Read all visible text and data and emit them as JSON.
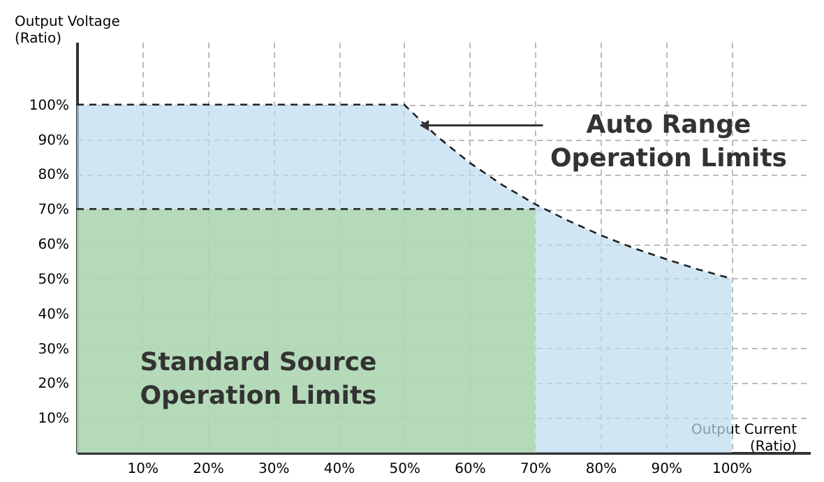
{
  "chart_data": {
    "type": "area",
    "xlabel": "Output Current\n(Ratio)",
    "ylabel": "Output Voltage\n(Ratio)",
    "xlim": [
      0,
      112
    ],
    "ylim": [
      0,
      118
    ],
    "xticks": [
      {
        "value": 10,
        "label": "10%"
      },
      {
        "value": 20,
        "label": "20%"
      },
      {
        "value": 30,
        "label": "30%"
      },
      {
        "value": 40,
        "label": "40%"
      },
      {
        "value": 50,
        "label": "50%"
      },
      {
        "value": 60,
        "label": "60%"
      },
      {
        "value": 70,
        "label": "70%"
      },
      {
        "value": 80,
        "label": "80%"
      },
      {
        "value": 90,
        "label": "90%"
      },
      {
        "value": 100,
        "label": "100%"
      }
    ],
    "yticks": [
      {
        "value": 10,
        "label": "10%"
      },
      {
        "value": 20,
        "label": "20%"
      },
      {
        "value": 30,
        "label": "30%"
      },
      {
        "value": 40,
        "label": "40%"
      },
      {
        "value": 50,
        "label": "50%"
      },
      {
        "value": 60,
        "label": "60%"
      },
      {
        "value": 70,
        "label": "70%"
      },
      {
        "value": 80,
        "label": "80%"
      },
      {
        "value": 90,
        "label": "90%"
      },
      {
        "value": 100,
        "label": "100%"
      }
    ],
    "grid": true,
    "line_style": "dashed",
    "series": [
      {
        "color": "#bcdcf0",
        "x": [
          0,
          50,
          55,
          60,
          65,
          70,
          75,
          80,
          85,
          90,
          95,
          100
        ],
        "values": [
          100,
          100,
          90.9,
          83.3,
          76.9,
          71.4,
          66.7,
          62.5,
          58.8,
          55.6,
          52.6,
          50
        ]
      },
      {
        "color": "#a9d4a0",
        "x": [
          0,
          70
        ],
        "values": [
          70,
          70
        ]
      }
    ],
    "annotations": [
      {
        "text": "Auto Range\nOperation Limits",
        "x": 52,
        "y": 94
      },
      "Standard Source\nOperation Limits"
    ]
  }
}
